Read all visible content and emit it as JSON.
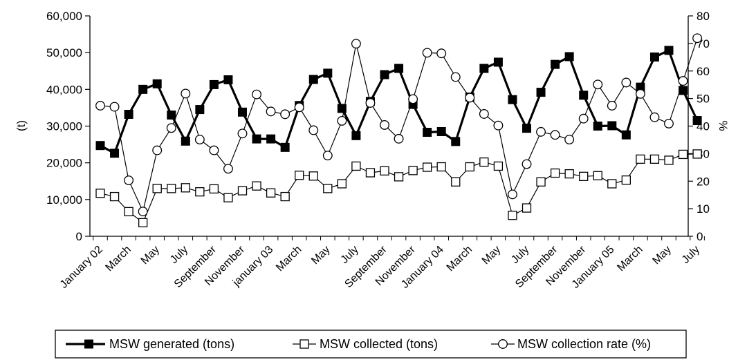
{
  "chart_data": {
    "type": "line",
    "x": [
      "Jan-02",
      "Feb-02",
      "Mar-02",
      "Apr-02",
      "May-02",
      "Jun-02",
      "Jul-02",
      "Aug-02",
      "Sep-02",
      "Oct-02",
      "Nov-02",
      "Dec-02",
      "Jan-03",
      "Feb-03",
      "Mar-03",
      "Apr-03",
      "May-03",
      "Jun-03",
      "Jul-03",
      "Aug-03",
      "Sep-03",
      "Oct-03",
      "Nov-03",
      "Dec-03",
      "Jan-04",
      "Feb-04",
      "Mar-04",
      "Apr-04",
      "May-04",
      "Jun-04",
      "Jul-04",
      "Aug-04",
      "Sep-04",
      "Oct-04",
      "Nov-04",
      "Dec-04",
      "Jan-05",
      "Feb-05",
      "Mar-05",
      "Apr-05",
      "May-05",
      "Jun-05",
      "Jul-05"
    ],
    "x_tick_labels": [
      "January 02",
      "March",
      "May",
      "July",
      "September",
      "November",
      "january 03",
      "March",
      "May",
      "July",
      "September",
      "November",
      "January 04",
      "March",
      "May",
      "July",
      "September",
      "November",
      "January 05",
      "March",
      "May",
      "July"
    ],
    "series": [
      {
        "name": "MSW generated (tons)",
        "axis": "left",
        "marker": "filled-square",
        "line_weight": "bold",
        "values": [
          24700,
          22600,
          33200,
          40000,
          41500,
          33000,
          25900,
          34500,
          41300,
          42600,
          33800,
          26500,
          26500,
          24200,
          35600,
          42700,
          44400,
          34800,
          27400,
          36700,
          44000,
          45700,
          35900,
          28300,
          28500,
          25800,
          37900,
          45700,
          47400,
          37200,
          29400,
          39200,
          46800,
          48900,
          38400,
          30000,
          30100,
          27600,
          40600,
          48800,
          50600,
          39700,
          31500
        ]
      },
      {
        "name": "MSW collected (tons)",
        "axis": "left",
        "marker": "open-square",
        "line_weight": "thin",
        "values": [
          11700,
          10800,
          6700,
          3700,
          13000,
          13000,
          13200,
          12100,
          12900,
          10500,
          12400,
          13700,
          11800,
          10800,
          16600,
          16400,
          13000,
          14300,
          19100,
          17300,
          17800,
          16200,
          17900,
          18800,
          18900,
          14800,
          18900,
          20200,
          19100,
          5700,
          7700,
          14800,
          17200,
          17000,
          16300,
          16500,
          14300,
          15300,
          21000,
          21000,
          20700,
          22300,
          22400
        ]
      },
      {
        "name": "MSW collection rate (%)",
        "axis": "right",
        "marker": "open-circle",
        "line_weight": "thin",
        "values": [
          47.4,
          47.0,
          20.3,
          9.0,
          31.2,
          39.3,
          51.8,
          35.1,
          31.2,
          24.5,
          37.3,
          51.5,
          45.3,
          44.3,
          46.8,
          38.5,
          29.3,
          41.9,
          69.9,
          48.4,
          40.4,
          35.4,
          49.8,
          66.6,
          66.4,
          57.8,
          50.3,
          44.4,
          40.2,
          15.2,
          26.2,
          37.9,
          36.8,
          35.1,
          42.7,
          55.1,
          47.4,
          55.8,
          51.7,
          43.2,
          40.9,
          56.4,
          71.9
        ]
      }
    ],
    "left_axis": {
      "label": "(t)",
      "range": [
        0,
        60000
      ],
      "ticks": [
        "0",
        "10,000",
        "20,000",
        "30,000",
        "40,000",
        "50,000",
        "60,000"
      ]
    },
    "right_axis": {
      "label": "%",
      "range": [
        0,
        80
      ],
      "ticks": [
        "0",
        "10",
        "20",
        "30",
        "40",
        "50",
        "60",
        "70",
        "80"
      ]
    },
    "grid": false,
    "legend_position": "bottom",
    "colors": {
      "line": "#000000",
      "marker_fill": "#000000",
      "open_fill": "#ffffff"
    }
  }
}
